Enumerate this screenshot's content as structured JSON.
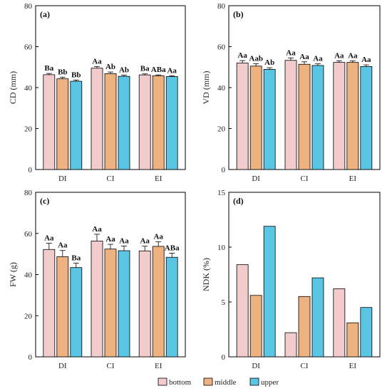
{
  "colors": {
    "bottom": "#f2cccc",
    "middle": "#eeb280",
    "upper": "#5bc5e4",
    "stroke": "#000000"
  },
  "legend": {
    "items": [
      "bottom",
      "middle",
      "upper"
    ]
  },
  "chart_data": [
    {
      "type": "bar",
      "panel_label": "(a)",
      "ylabel": "CD (mm)",
      "ylim": [
        0,
        80
      ],
      "yticks": [
        0,
        20,
        40,
        60,
        80
      ],
      "categories": [
        "DI",
        "CI",
        "EI"
      ],
      "series": [
        {
          "name": "bottom",
          "values": [
            46.3,
            49.5,
            46.2
          ],
          "errors": [
            0.6,
            0.8,
            0.5
          ],
          "labels": [
            "Ba",
            "Aa",
            "Ba"
          ]
        },
        {
          "name": "middle",
          "values": [
            44.3,
            46.8,
            45.8
          ],
          "errors": [
            0.8,
            0.8,
            0.4
          ],
          "labels": [
            "Bb",
            "Ab",
            "ABa"
          ]
        },
        {
          "name": "upper",
          "values": [
            43.1,
            45.5,
            45.4
          ],
          "errors": [
            0.6,
            0.6,
            0.4
          ],
          "labels": [
            "Bb",
            "Ab",
            "Aa"
          ]
        }
      ]
    },
    {
      "type": "bar",
      "panel_label": "(b)",
      "ylabel": "VD (mm)",
      "ylim": [
        0,
        80
      ],
      "yticks": [
        0,
        20,
        40,
        60,
        80
      ],
      "categories": [
        "DI",
        "CI",
        "EI"
      ],
      "series": [
        {
          "name": "bottom",
          "values": [
            52.0,
            53.3,
            52.3
          ],
          "errors": [
            1.2,
            1.2,
            0.8
          ],
          "labels": [
            "Aa",
            "Aa",
            "Aa"
          ]
        },
        {
          "name": "middle",
          "values": [
            50.5,
            51.4,
            52.3
          ],
          "errors": [
            1.2,
            1.2,
            0.8
          ],
          "labels": [
            "Aab",
            "Aa",
            "Aa"
          ]
        },
        {
          "name": "upper",
          "values": [
            48.9,
            50.8,
            50.3
          ],
          "errors": [
            0.8,
            0.8,
            0.8
          ],
          "labels": [
            "Ab",
            "Aa",
            "Aa"
          ]
        }
      ]
    },
    {
      "type": "bar",
      "panel_label": "(c)",
      "ylabel": "FW (g)",
      "ylim": [
        0,
        80
      ],
      "yticks": [
        0,
        20,
        40,
        60,
        80
      ],
      "categories": [
        "DI",
        "CI",
        "EI"
      ],
      "series": [
        {
          "name": "bottom",
          "values": [
            52.2,
            56.3,
            51.5
          ],
          "errors": [
            3.0,
            3.3,
            2.3
          ],
          "labels": [
            "Aa",
            "Aa",
            "Aa"
          ]
        },
        {
          "name": "middle",
          "values": [
            48.7,
            52.4,
            53.7
          ],
          "errors": [
            3.0,
            2.3,
            2.3
          ],
          "labels": [
            "Aa",
            "Aa",
            "Aa"
          ]
        },
        {
          "name": "upper",
          "values": [
            43.4,
            51.6,
            48.4
          ],
          "errors": [
            2.2,
            2.3,
            2.0
          ],
          "labels": [
            "Ba",
            "Aa",
            "ABa"
          ]
        }
      ]
    },
    {
      "type": "bar",
      "panel_label": "(d)",
      "ylabel": "NDK (%)",
      "ylim": [
        0,
        15
      ],
      "yticks": [
        0,
        5,
        10,
        15
      ],
      "categories": [
        "DI",
        "CI",
        "EI"
      ],
      "series": [
        {
          "name": "bottom",
          "values": [
            8.4,
            2.2,
            6.2
          ]
        },
        {
          "name": "middle",
          "values": [
            5.6,
            5.5,
            3.1
          ]
        },
        {
          "name": "upper",
          "values": [
            11.9,
            7.2,
            4.5
          ]
        }
      ]
    }
  ]
}
